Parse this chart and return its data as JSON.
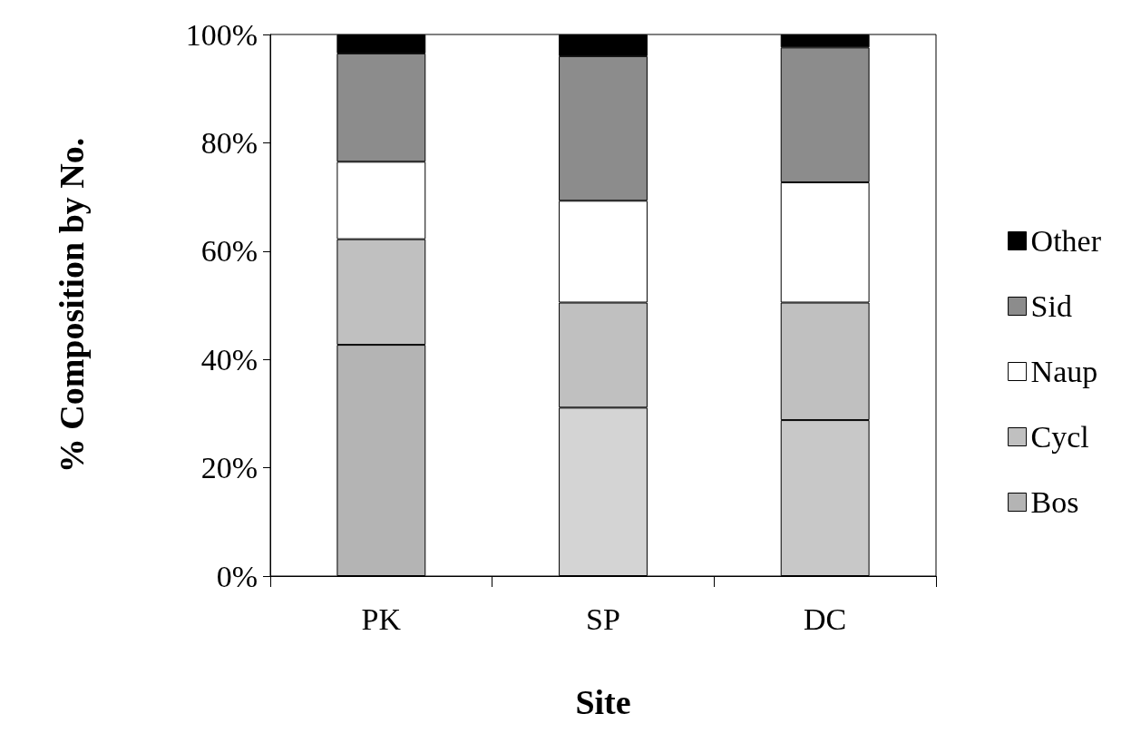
{
  "chart_data": {
    "type": "bar",
    "stacked": true,
    "xlabel": "Site",
    "ylabel": "% Composition by No.",
    "categories": [
      "PK",
      "SP",
      "DC"
    ],
    "series": [
      {
        "name": "Bos",
        "color": "#b4b4b4",
        "colors": [
          "#b4b4b4",
          "#d4d4d4",
          "#c8c8c8"
        ],
        "values": [
          42.7,
          31.1,
          28.8
        ]
      },
      {
        "name": "Cycl",
        "color": "#c0c0c0",
        "values": [
          19.5,
          19.4,
          21.7
        ]
      },
      {
        "name": "Naup",
        "color": "#ffffff",
        "values": [
          14.3,
          18.8,
          22.2
        ]
      },
      {
        "name": "Sid",
        "color": "#8c8c8c",
        "values": [
          20.0,
          26.7,
          24.9
        ]
      },
      {
        "name": "Other",
        "color": "#000000",
        "values": [
          3.5,
          4.0,
          2.4
        ]
      }
    ],
    "ylim": [
      0,
      100
    ],
    "yticks": [
      {
        "value": 0,
        "label": "0%"
      },
      {
        "value": 20,
        "label": "20%"
      },
      {
        "value": 40,
        "label": "40%"
      },
      {
        "value": 60,
        "label": "60%"
      },
      {
        "value": 80,
        "label": "80%"
      },
      {
        "value": 100,
        "label": "100%"
      }
    ],
    "grid": false,
    "legend": "right"
  }
}
